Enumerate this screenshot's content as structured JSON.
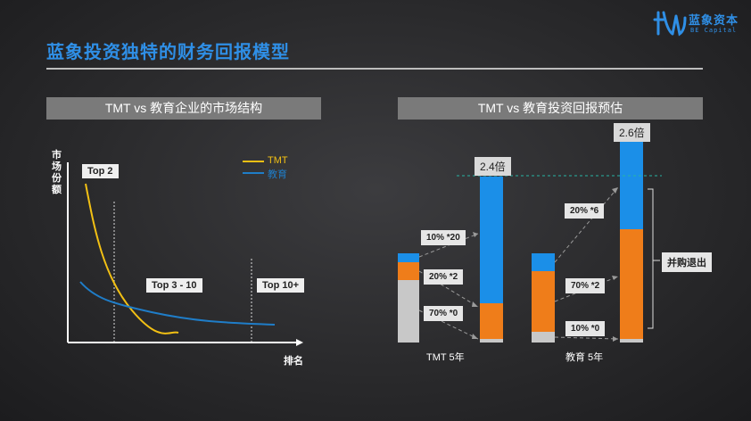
{
  "slide": {
    "title": "蓝象投资独特的财务回报模型"
  },
  "logo": {
    "name_cn": "蓝象资本",
    "name_en": "BE Capital"
  },
  "left_panel": {
    "heading": "TMT vs 教育企业的市场结构",
    "y_axis_label": "市场份额",
    "x_axis_label": "排名",
    "legend": [
      {
        "name": "TMT",
        "color": "#f2c014"
      },
      {
        "name": "教育",
        "color": "#1f7dc8"
      }
    ],
    "zones": [
      "Top 2",
      "Top 3 - 10",
      "Top 10+"
    ]
  },
  "right_panel": {
    "heading": "TMT vs 教育投资回报预估",
    "tmt": {
      "caption": "TMT 5年",
      "multiple": "2.4倍",
      "callouts": [
        "10% *20",
        "20% *2",
        "70% *0"
      ]
    },
    "edu": {
      "caption": "教育 5年",
      "multiple": "2.6倍",
      "callouts": [
        "20% *6",
        "70% *2",
        "10% *0"
      ],
      "bracket_label": "并购退出"
    },
    "colors": {
      "blue": "#1b8fe8",
      "orange": "#ef7d1a",
      "gray": "#c8c8c8",
      "guide": "#27b4a4"
    }
  }
}
